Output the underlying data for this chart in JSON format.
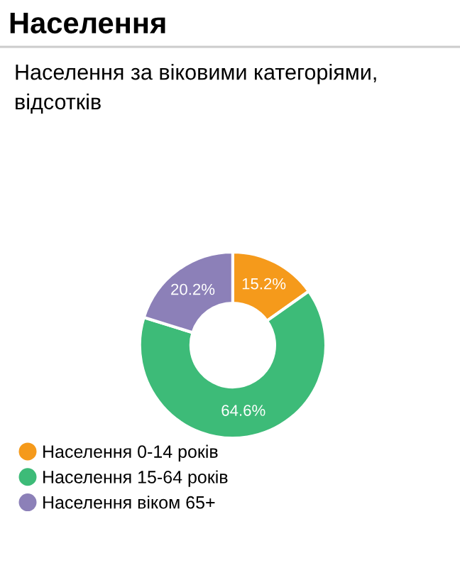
{
  "chart_data": {
    "type": "donut",
    "title": "Населення",
    "subtitle": "Населення за віковими категоріями, відсотків",
    "categories": [
      "Населення 0-14 років",
      "Населення 15-64 років",
      "Населення віком 65+"
    ],
    "values": [
      15.2,
      64.6,
      20.2
    ],
    "colors": [
      "#f59a1b",
      "#3dbb78",
      "#8c80b8"
    ],
    "value_labels": [
      "15.2%",
      "64.6%",
      "20.2%"
    ],
    "legend": "bottom"
  }
}
